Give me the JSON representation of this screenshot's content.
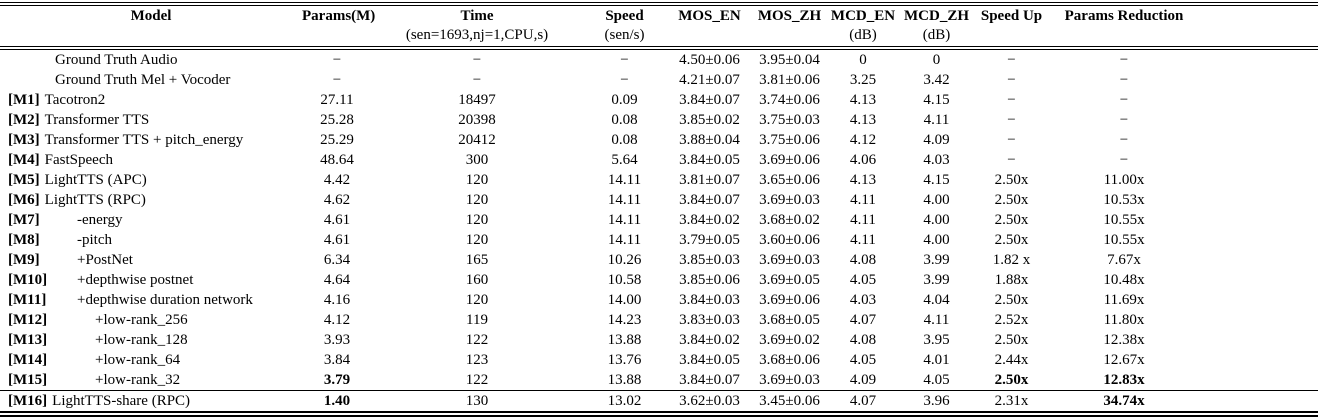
{
  "colors": {
    "text": "#000000",
    "rule": "#000000",
    "background": "#ffffff"
  },
  "table": {
    "columns": [
      {
        "field": "model",
        "label": "Model",
        "sub": ""
      },
      {
        "field": "params",
        "label": "Params(M)",
        "sub": ""
      },
      {
        "field": "time",
        "label": "Time",
        "sub": "(sen=1693,nj=1,CPU,s)"
      },
      {
        "field": "speed",
        "label": "Speed",
        "sub": "(sen/s)"
      },
      {
        "field": "mos_en",
        "label": "MOS_EN",
        "sub": ""
      },
      {
        "field": "mos_zh",
        "label": "MOS_ZH",
        "sub": ""
      },
      {
        "field": "mcd_en",
        "label": "MCD_EN",
        "sub": "(dB)"
      },
      {
        "field": "mcd_zh",
        "label": "MCD_ZH",
        "sub": "(dB)"
      },
      {
        "field": "speedup",
        "label": "Speed Up",
        "sub": ""
      },
      {
        "field": "reduction",
        "label": "Params Reduction",
        "sub": ""
      }
    ],
    "rows": [
      {
        "tag": "",
        "model": "Ground Truth Audio",
        "indent": "gt",
        "params": "−",
        "time": "−",
        "speed": "−",
        "mos_en": "4.50±0.06",
        "mos_zh": "3.95±0.04",
        "mcd_en": "0",
        "mcd_zh": "0",
        "speedup": "−",
        "reduction": "−",
        "bold": []
      },
      {
        "tag": "",
        "model": "Ground Truth Mel + Vocoder",
        "indent": "gt",
        "params": "−",
        "time": "−",
        "speed": "−",
        "mos_en": "4.21±0.07",
        "mos_zh": "3.81±0.06",
        "mcd_en": "3.25",
        "mcd_zh": "3.42",
        "speedup": "−",
        "reduction": "−",
        "bold": []
      },
      {
        "tag": "[M1]",
        "model": "Tacotron2",
        "indent": "0",
        "params": "27.11",
        "time": "18497",
        "speed": "0.09",
        "mos_en": "3.84±0.07",
        "mos_zh": "3.74±0.06",
        "mcd_en": "4.13",
        "mcd_zh": "4.15",
        "speedup": "−",
        "reduction": "−",
        "bold": []
      },
      {
        "tag": "[M2]",
        "model": "Transformer TTS",
        "indent": "0",
        "params": "25.28",
        "time": "20398",
        "speed": "0.08",
        "mos_en": "3.85±0.02",
        "mos_zh": "3.75±0.03",
        "mcd_en": "4.13",
        "mcd_zh": "4.11",
        "speedup": "−",
        "reduction": "−",
        "bold": []
      },
      {
        "tag": "[M3]",
        "model": "Transformer TTS + pitch_energy",
        "indent": "0",
        "params": "25.29",
        "time": "20412",
        "speed": "0.08",
        "mos_en": "3.88±0.04",
        "mos_zh": "3.75±0.06",
        "mcd_en": "4.12",
        "mcd_zh": "4.09",
        "speedup": "−",
        "reduction": "−",
        "bold": []
      },
      {
        "tag": "[M4]",
        "model": "FastSpeech",
        "indent": "0",
        "params": "48.64",
        "time": "300",
        "speed": "5.64",
        "mos_en": "3.84±0.05",
        "mos_zh": "3.69±0.06",
        "mcd_en": "4.06",
        "mcd_zh": "4.03",
        "speedup": "−",
        "reduction": "−",
        "bold": []
      },
      {
        "tag": "[M5]",
        "model": "LightTTS (APC)",
        "indent": "0",
        "params": "4.42",
        "time": "120",
        "speed": "14.11",
        "mos_en": "3.81±0.07",
        "mos_zh": "3.65±0.06",
        "mcd_en": "4.13",
        "mcd_zh": "4.15",
        "speedup": "2.50x",
        "reduction": "11.00x",
        "bold": []
      },
      {
        "tag": "[M6]",
        "model": "LightTTS (RPC)",
        "indent": "0",
        "params": "4.62",
        "time": "120",
        "speed": "14.11",
        "mos_en": "3.84±0.07",
        "mos_zh": "3.69±0.03",
        "mcd_en": "4.11",
        "mcd_zh": "4.00",
        "speedup": "2.50x",
        "reduction": "10.53x",
        "bold": []
      },
      {
        "tag": "[M7]",
        "model": "-energy",
        "indent": "1",
        "params": "4.61",
        "time": "120",
        "speed": "14.11",
        "mos_en": "3.84±0.02",
        "mos_zh": "3.68±0.02",
        "mcd_en": "4.11",
        "mcd_zh": "4.00",
        "speedup": "2.50x",
        "reduction": "10.55x",
        "bold": []
      },
      {
        "tag": "[M8]",
        "model": "-pitch",
        "indent": "1",
        "params": "4.61",
        "time": "120",
        "speed": "14.11",
        "mos_en": "3.79±0.05",
        "mos_zh": "3.60±0.06",
        "mcd_en": "4.11",
        "mcd_zh": "4.00",
        "speedup": "2.50x",
        "reduction": "10.55x",
        "bold": []
      },
      {
        "tag": "[M9]",
        "model": "+PostNet",
        "indent": "1",
        "params": "6.34",
        "time": "165",
        "speed": "10.26",
        "mos_en": "3.85±0.03",
        "mos_zh": "3.69±0.03",
        "mcd_en": "4.08",
        "mcd_zh": "3.99",
        "speedup": "1.82 x",
        "reduction": "7.67x",
        "bold": []
      },
      {
        "tag": "[M10]",
        "model": "+depthwise postnet",
        "indent": "1",
        "params": "4.64",
        "time": "160",
        "speed": "10.58",
        "mos_en": "3.85±0.06",
        "mos_zh": "3.69±0.05",
        "mcd_en": "4.05",
        "mcd_zh": "3.99",
        "speedup": "1.88x",
        "reduction": "10.48x",
        "bold": []
      },
      {
        "tag": "[M11]",
        "model": "+depthwise duration network",
        "indent": "1",
        "params": "4.16",
        "time": "120",
        "speed": "14.00",
        "mos_en": "3.84±0.03",
        "mos_zh": "3.69±0.06",
        "mcd_en": "4.03",
        "mcd_zh": "4.04",
        "speedup": "2.50x",
        "reduction": "11.69x",
        "bold": []
      },
      {
        "tag": "[M12]",
        "model": "+low-rank_256",
        "indent": "2",
        "params": "4.12",
        "time": "119",
        "speed": "14.23",
        "mos_en": "3.83±0.03",
        "mos_zh": "3.68±0.05",
        "mcd_en": "4.07",
        "mcd_zh": "4.11",
        "speedup": "2.52x",
        "reduction": "11.80x",
        "bold": []
      },
      {
        "tag": "[M13]",
        "model": "+low-rank_128",
        "indent": "2",
        "params": "3.93",
        "time": "122",
        "speed": "13.88",
        "mos_en": "3.84±0.02",
        "mos_zh": "3.69±0.02",
        "mcd_en": "4.08",
        "mcd_zh": "3.95",
        "speedup": "2.50x",
        "reduction": "12.38x",
        "bold": []
      },
      {
        "tag": "[M14]",
        "model": "+low-rank_64",
        "indent": "2",
        "params": "3.84",
        "time": "123",
        "speed": "13.76",
        "mos_en": "3.84±0.05",
        "mos_zh": "3.68±0.06",
        "mcd_en": "4.05",
        "mcd_zh": "4.01",
        "speedup": "2.44x",
        "reduction": "12.67x",
        "bold": []
      },
      {
        "tag": "[M15]",
        "model": "+low-rank_32",
        "indent": "2",
        "params": "3.79",
        "time": "122",
        "speed": "13.88",
        "mos_en": "3.84±0.07",
        "mos_zh": "3.69±0.03",
        "mcd_en": "4.09",
        "mcd_zh": "4.05",
        "speedup": "2.50x",
        "reduction": "12.83x",
        "bold": [
          "params",
          "speedup",
          "reduction"
        ]
      },
      {
        "tag": "[M16]",
        "model": "LightTTS-share (RPC)",
        "indent": "0",
        "params": "1.40",
        "time": "130",
        "speed": "13.02",
        "mos_en": "3.62±0.03",
        "mos_zh": "3.45±0.06",
        "mcd_en": "4.07",
        "mcd_zh": "3.96",
        "speedup": "2.31x",
        "reduction": "34.74x",
        "bold": [
          "params",
          "reduction"
        ],
        "rule_above": true
      }
    ]
  }
}
